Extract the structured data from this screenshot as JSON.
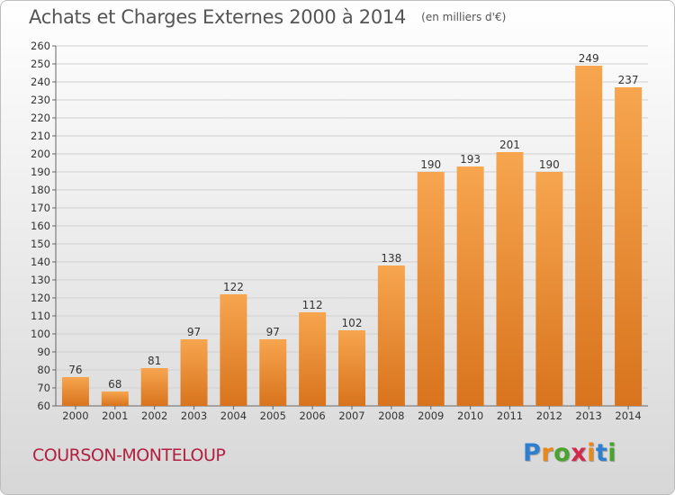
{
  "title": "Achats et Charges Externes 2000 à 2014",
  "subtitle": "(en milliers d'€)",
  "commune": "COURSON-MONTELOUP",
  "logo": {
    "text": "Proxiti",
    "letter_colors": [
      "#2f7fd0",
      "#e8891c",
      "#4aa32f",
      "#d12a4b",
      "#e8891c",
      "#2f7fd0",
      "#4aa32f"
    ]
  },
  "colors": {
    "bar_top": "#f7a54f",
    "bar_bottom": "#d8741d",
    "grid": "#d0d0d0",
    "commune": "#b12040"
  },
  "chart_data": {
    "type": "bar",
    "title": "Achats et Charges Externes 2000 à 2014",
    "subtitle": "(en milliers d'€)",
    "categories": [
      "2000",
      "2001",
      "2002",
      "2003",
      "2004",
      "2005",
      "2006",
      "2007",
      "2008",
      "2009",
      "2010",
      "2011",
      "2012",
      "2013",
      "2014"
    ],
    "values": [
      76,
      68,
      81,
      97,
      122,
      97,
      112,
      102,
      138,
      190,
      193,
      201,
      190,
      249,
      237
    ],
    "ylim": [
      60,
      260
    ],
    "ytick_step": 10,
    "grid": true,
    "data_labels": true,
    "xlabel": "",
    "ylabel": ""
  }
}
